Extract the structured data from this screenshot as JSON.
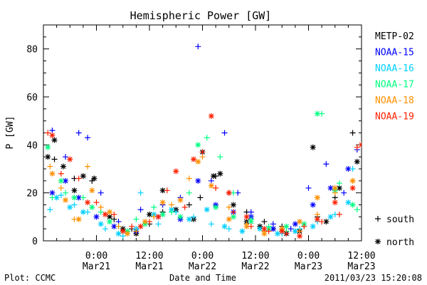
{
  "chart_data": {
    "type": "scatter",
    "title": "Hemispheric Power [GW]",
    "xlabel": "Date and Time",
    "ylabel": "P [GW]",
    "x_unit": "hours from 2011-03-20 12:00 UT",
    "xlim": [
      0,
      72
    ],
    "ylim": [
      0,
      90
    ],
    "y_ticks": [
      0,
      20,
      40,
      60,
      80
    ],
    "x_ticks": [
      {
        "x": 12,
        "line1": "0:00",
        "line2": "Mar21"
      },
      {
        "x": 24,
        "line1": "12:00",
        "line2": "Mar21"
      },
      {
        "x": 36,
        "line1": "0:00",
        "line2": "Mar22"
      },
      {
        "x": 48,
        "line1": "12:00",
        "line2": "Mar22"
      },
      {
        "x": 60,
        "line1": "0:00",
        "line2": "Mar23"
      },
      {
        "x": 72,
        "line1": "12:00",
        "line2": "Mar23"
      }
    ],
    "grid": false,
    "legend_position": "right",
    "symbol_legend": [
      {
        "symbol": "plus",
        "label": "south"
      },
      {
        "symbol": "asterisk",
        "label": "north"
      }
    ],
    "series": [
      {
        "name": "METP-02",
        "color": "#000000",
        "south": [
          [
            2.5,
            34
          ],
          [
            7,
            26
          ],
          [
            11,
            25
          ],
          [
            16,
            9
          ],
          [
            20,
            5
          ],
          [
            24,
            7
          ],
          [
            27,
            12
          ],
          [
            33,
            15
          ],
          [
            35.5,
            18
          ],
          [
            39,
            27
          ],
          [
            42,
            20
          ],
          [
            46,
            12
          ],
          [
            50,
            8
          ],
          [
            54,
            6
          ],
          [
            57,
            4
          ],
          [
            62,
            10
          ],
          [
            66,
            18
          ],
          [
            70,
            45
          ],
          [
            73,
            14
          ]
        ],
        "north": [
          [
            1,
            35
          ],
          [
            2.5,
            42
          ],
          [
            4.5,
            31
          ],
          [
            7,
            21
          ],
          [
            9,
            27
          ],
          [
            11.5,
            26
          ],
          [
            15,
            10
          ],
          [
            18,
            5
          ],
          [
            21,
            3
          ],
          [
            24,
            11
          ],
          [
            27,
            21
          ],
          [
            30,
            13
          ],
          [
            34,
            9
          ],
          [
            36,
            37
          ],
          [
            38.5,
            27
          ],
          [
            40,
            28
          ],
          [
            43,
            15
          ],
          [
            46,
            8
          ],
          [
            49,
            6
          ],
          [
            52,
            5
          ],
          [
            55,
            3
          ],
          [
            58,
            4
          ],
          [
            61,
            39
          ],
          [
            64,
            8
          ],
          [
            67,
            22
          ],
          [
            71,
            33
          ],
          [
            74,
            12
          ]
        ]
      },
      {
        "name": "NOAA-15",
        "color": "#0000ff",
        "south": [
          [
            2,
            46
          ],
          [
            5,
            35
          ],
          [
            8,
            45
          ],
          [
            10,
            43
          ],
          [
            13,
            20
          ],
          [
            17,
            8
          ],
          [
            22,
            13
          ],
          [
            27,
            15
          ],
          [
            31,
            18
          ],
          [
            35,
            81
          ],
          [
            38,
            25
          ],
          [
            41,
            45
          ],
          [
            44,
            20
          ],
          [
            47,
            12
          ],
          [
            52,
            7
          ],
          [
            56,
            5
          ],
          [
            60,
            22
          ],
          [
            64,
            32
          ],
          [
            68,
            20
          ],
          [
            71,
            38
          ],
          [
            74,
            25
          ]
        ],
        "north": [
          [
            2,
            20
          ],
          [
            5,
            25
          ],
          [
            8,
            18
          ],
          [
            12,
            10
          ],
          [
            16,
            6
          ],
          [
            21,
            4
          ],
          [
            26,
            10
          ],
          [
            31,
            9
          ],
          [
            35,
            25
          ],
          [
            39,
            15
          ],
          [
            43,
            12
          ],
          [
            47,
            10
          ],
          [
            52,
            5
          ],
          [
            57,
            7
          ],
          [
            61,
            15
          ],
          [
            65,
            22
          ],
          [
            69,
            30
          ],
          [
            73,
            18
          ]
        ]
      },
      {
        "name": "NOAA-16",
        "color": "#00d0ff",
        "south": [
          [
            1.5,
            13
          ],
          [
            4,
            19
          ],
          [
            7,
            15
          ],
          [
            10,
            12
          ],
          [
            14,
            5
          ],
          [
            18,
            2
          ],
          [
            22,
            20
          ],
          [
            26,
            7
          ],
          [
            30,
            12
          ],
          [
            34,
            10
          ],
          [
            38,
            7
          ],
          [
            42,
            5
          ],
          [
            46,
            7
          ],
          [
            50,
            4
          ],
          [
            54,
            3
          ],
          [
            58,
            5
          ],
          [
            62,
            8
          ],
          [
            66,
            11
          ],
          [
            70,
            30
          ],
          [
            73,
            34
          ]
        ],
        "north": [
          [
            3,
            18
          ],
          [
            6,
            14
          ],
          [
            9,
            12
          ],
          [
            13,
            7
          ],
          [
            17,
            3
          ],
          [
            21,
            5
          ],
          [
            25,
            11
          ],
          [
            29,
            13
          ],
          [
            33,
            9
          ],
          [
            37,
            13
          ],
          [
            41,
            6
          ],
          [
            45,
            4
          ],
          [
            49,
            5
          ],
          [
            53,
            3
          ],
          [
            57,
            4
          ],
          [
            61,
            6
          ],
          [
            65,
            10
          ],
          [
            69,
            16
          ],
          [
            73,
            21
          ]
        ]
      },
      {
        "name": "NOAA-17",
        "color": "#00ff80",
        "south": [
          [
            2,
            18
          ],
          [
            5,
            20
          ],
          [
            9,
            18
          ],
          [
            13,
            12
          ],
          [
            17,
            6
          ],
          [
            21,
            9
          ],
          [
            25,
            14
          ],
          [
            29,
            12
          ],
          [
            33,
            20
          ],
          [
            37,
            43
          ],
          [
            40,
            35
          ],
          [
            43,
            20
          ],
          [
            47,
            9
          ],
          [
            51,
            6
          ],
          [
            55,
            4
          ],
          [
            59,
            6
          ],
          [
            63,
            53
          ],
          [
            67,
            24
          ],
          [
            71,
            13
          ],
          [
            74,
            9
          ]
        ],
        "north": [
          [
            1,
            39
          ],
          [
            4,
            25
          ],
          [
            7,
            18
          ],
          [
            11,
            14
          ],
          [
            15,
            8
          ],
          [
            19,
            4
          ],
          [
            23,
            7
          ],
          [
            27,
            11
          ],
          [
            31,
            10
          ],
          [
            35,
            40
          ],
          [
            39,
            14
          ],
          [
            43,
            10
          ],
          [
            47,
            8
          ],
          [
            51,
            5
          ],
          [
            55,
            6
          ],
          [
            59,
            7
          ],
          [
            62,
            53
          ],
          [
            66,
            21
          ],
          [
            70,
            15
          ],
          [
            74,
            11
          ]
        ]
      },
      {
        "name": "NOAA-18",
        "color": "#ff9000",
        "south": [
          [
            1.5,
            31
          ],
          [
            4,
            22
          ],
          [
            7,
            9
          ],
          [
            10,
            31
          ],
          [
            13,
            14
          ],
          [
            17,
            6
          ],
          [
            21,
            4
          ],
          [
            25,
            10
          ],
          [
            29,
            15
          ],
          [
            33,
            26
          ],
          [
            36,
            35
          ],
          [
            39,
            22
          ],
          [
            42,
            14
          ],
          [
            46,
            7
          ],
          [
            50,
            4
          ],
          [
            54,
            5
          ],
          [
            58,
            4
          ],
          [
            62,
            11
          ],
          [
            66,
            20
          ],
          [
            70,
            25
          ],
          [
            73,
            17
          ]
        ],
        "north": [
          [
            2,
            28
          ],
          [
            5,
            17
          ],
          [
            8,
            9
          ],
          [
            11,
            21
          ],
          [
            15,
            12
          ],
          [
            19,
            3
          ],
          [
            23,
            8
          ],
          [
            27,
            16
          ],
          [
            31,
            17
          ],
          [
            35,
            33
          ],
          [
            38,
            23
          ],
          [
            42,
            9
          ],
          [
            46,
            6
          ],
          [
            50,
            3
          ],
          [
            54,
            5
          ],
          [
            58,
            8
          ],
          [
            62,
            18
          ],
          [
            66,
            22
          ],
          [
            70,
            25
          ],
          [
            73,
            9
          ]
        ]
      },
      {
        "name": "NOAA-19",
        "color": "#ff2000",
        "south": [
          [
            1,
            45
          ],
          [
            4,
            28
          ],
          [
            8,
            26
          ],
          [
            12,
            16
          ],
          [
            16,
            11
          ],
          [
            20,
            6
          ],
          [
            24,
            8
          ],
          [
            28,
            21
          ],
          [
            32,
            14
          ],
          [
            36,
            37
          ],
          [
            39,
            22
          ],
          [
            43,
            12
          ],
          [
            47,
            6
          ],
          [
            51,
            4
          ],
          [
            55,
            3
          ],
          [
            59,
            6
          ],
          [
            63,
            8
          ],
          [
            67,
            11
          ],
          [
            71,
            39
          ],
          [
            74,
            20
          ]
        ],
        "north": [
          [
            2,
            44
          ],
          [
            6,
            34
          ],
          [
            10,
            16
          ],
          [
            14,
            11
          ],
          [
            18,
            4
          ],
          [
            22,
            6
          ],
          [
            26,
            10
          ],
          [
            30,
            29
          ],
          [
            34,
            34
          ],
          [
            38,
            52
          ],
          [
            42,
            20
          ],
          [
            46,
            10
          ],
          [
            50,
            5
          ],
          [
            54,
            4
          ],
          [
            58,
            2
          ],
          [
            62,
            9
          ],
          [
            66,
            16
          ],
          [
            70,
            22
          ],
          [
            72,
            40
          ],
          [
            74,
            20
          ]
        ]
      }
    ]
  },
  "footer": {
    "left": "Plot: CCMC",
    "center": "Date and Time",
    "right": "2011/03/23 15:20:08"
  }
}
